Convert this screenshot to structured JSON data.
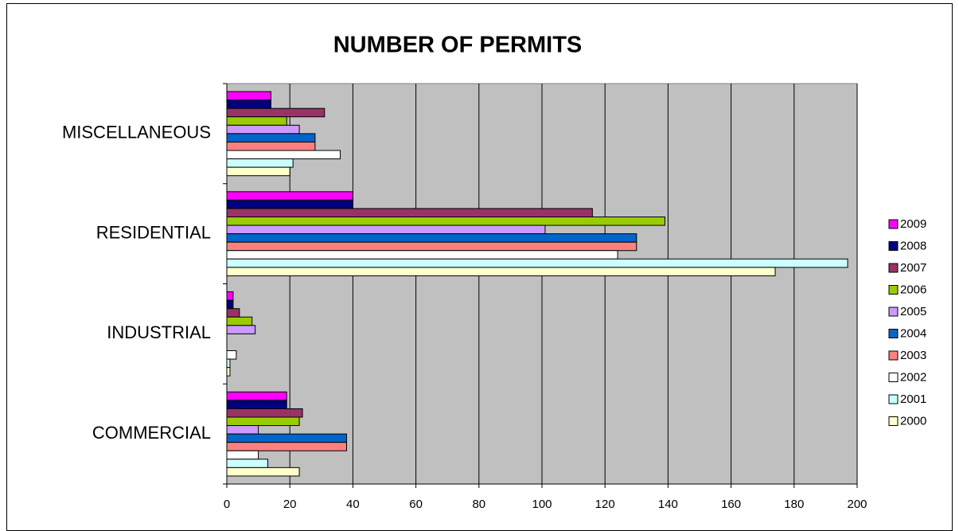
{
  "chart_data": {
    "type": "bar",
    "orientation": "horizontal",
    "title": "NUMBER OF PERMITS",
    "categories": [
      "COMMERCIAL",
      "INDUSTRIAL",
      "RESIDENTIAL",
      "MISCELLANEOUS"
    ],
    "series": [
      {
        "name": "2009",
        "color": "#ff00ff",
        "values": [
          19,
          2,
          40,
          14
        ]
      },
      {
        "name": "2008",
        "color": "#000080",
        "values": [
          19,
          2,
          40,
          14
        ]
      },
      {
        "name": "2007",
        "color": "#993366",
        "values": [
          24,
          4,
          116,
          31
        ]
      },
      {
        "name": "2006",
        "color": "#99cc00",
        "values": [
          23,
          8,
          139,
          19
        ]
      },
      {
        "name": "2005",
        "color": "#cc99ff",
        "values": [
          10,
          9,
          101,
          23
        ]
      },
      {
        "name": "2004",
        "color": "#0066cc",
        "values": [
          38,
          0,
          130,
          28
        ]
      },
      {
        "name": "2003",
        "color": "#ff8080",
        "values": [
          38,
          0,
          130,
          28
        ]
      },
      {
        "name": "2002",
        "color": "#ffffff",
        "values": [
          10,
          3,
          124,
          36
        ]
      },
      {
        "name": "2001",
        "color": "#ccffff",
        "values": [
          13,
          1,
          197,
          21
        ]
      },
      {
        "name": "2000",
        "color": "#ffffcc",
        "values": [
          23,
          1,
          174,
          20
        ]
      }
    ],
    "xlim": [
      0,
      200
    ],
    "xticks": [
      0,
      20,
      40,
      60,
      80,
      100,
      120,
      140,
      160,
      180,
      200
    ],
    "grid": true,
    "legend": "right",
    "plot_background": "#c0c0c0"
  }
}
